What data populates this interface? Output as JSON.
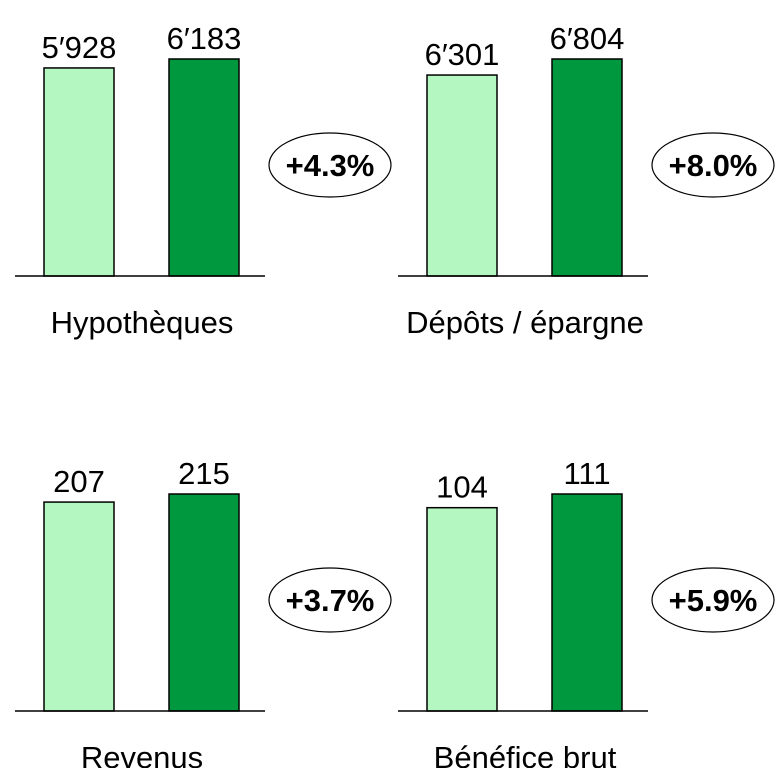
{
  "chart_data": [
    {
      "type": "bar",
      "xlabel": "Hypothèques",
      "values": [
        5928,
        6183
      ],
      "value_labels": [
        "5′928",
        "6′183"
      ],
      "colors": [
        "#b5f7c0",
        "#00983e"
      ],
      "annotation": "+4.3%"
    },
    {
      "type": "bar",
      "xlabel": "Dépôts / épargne",
      "values": [
        6301,
        6804
      ],
      "value_labels": [
        "6′301",
        "6′804"
      ],
      "colors": [
        "#b5f7c0",
        "#00983e"
      ],
      "annotation": "+8.0%"
    },
    {
      "type": "bar",
      "xlabel": "Revenus",
      "values": [
        207,
        215
      ],
      "value_labels": [
        "207",
        "215"
      ],
      "colors": [
        "#b5f7c0",
        "#00983e"
      ],
      "annotation": "+3.7%"
    },
    {
      "type": "bar",
      "xlabel": "Bénéfice brut",
      "values": [
        104,
        111
      ],
      "value_labels": [
        "104",
        "111"
      ],
      "colors": [
        "#b5f7c0",
        "#00983e"
      ],
      "annotation": "+5.9%"
    }
  ]
}
